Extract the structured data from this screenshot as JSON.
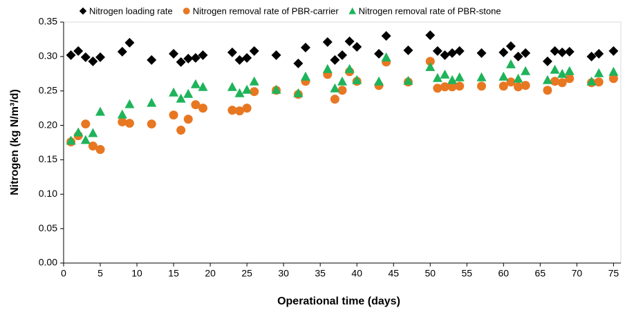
{
  "chart_data": {
    "type": "scatter",
    "x_label": "Operational time (days)",
    "y_label": "Nitrogen (kg N/m³/d)",
    "xlim": [
      0,
      76
    ],
    "ylim": [
      0,
      0.35
    ],
    "xticks": [
      0,
      5,
      10,
      15,
      20,
      25,
      30,
      35,
      40,
      45,
      50,
      55,
      60,
      65,
      70,
      75
    ],
    "yticks": [
      {
        "value": 0,
        "label": "0.00"
      },
      0.05,
      {
        "value": 0.1,
        "label": "0.10"
      },
      0.15,
      {
        "value": 0.2,
        "label": "0.20"
      },
      0.25,
      {
        "value": 0.3,
        "label": "0.30"
      },
      0.35
    ],
    "legend_position": "top",
    "series": [
      {
        "name": "Nitrogen loading rate",
        "color": "#000000",
        "marker": "diamond",
        "x": [
          1,
          2,
          3,
          4,
          5,
          8,
          9,
          12,
          15,
          16,
          17,
          18,
          19,
          23,
          24,
          25,
          26,
          29,
          32,
          33,
          36,
          37,
          38,
          39,
          40,
          43,
          44,
          47,
          50,
          51,
          52,
          53,
          54,
          57,
          60,
          61,
          62,
          63,
          66,
          67,
          68,
          69,
          72,
          73,
          75
        ],
        "values": [
          0.302,
          0.308,
          0.299,
          0.293,
          0.299,
          0.307,
          0.32,
          0.295,
          0.304,
          0.292,
          0.297,
          0.298,
          0.302,
          0.306,
          0.295,
          0.298,
          0.308,
          0.302,
          0.29,
          0.313,
          0.321,
          0.295,
          0.302,
          0.322,
          0.314,
          0.304,
          0.33,
          0.309,
          0.331,
          0.308,
          0.302,
          0.305,
          0.308,
          0.305,
          0.306,
          0.315,
          0.3,
          0.305,
          0.293,
          0.308,
          0.306,
          0.307,
          0.3,
          0.304,
          0.308
        ]
      },
      {
        "name": "Nitrogen removal rate of PBR-carrier",
        "color": "#e87722",
        "marker": "circle",
        "x": [
          1,
          2,
          3,
          4,
          5,
          8,
          9,
          12,
          15,
          16,
          17,
          18,
          19,
          23,
          24,
          25,
          26,
          29,
          32,
          33,
          36,
          37,
          38,
          39,
          40,
          43,
          44,
          47,
          50,
          51,
          52,
          53,
          54,
          57,
          60,
          61,
          62,
          63,
          66,
          67,
          68,
          69,
          72,
          73,
          75
        ],
        "values": [
          0.176,
          0.185,
          0.202,
          0.17,
          0.165,
          0.205,
          0.203,
          0.202,
          0.215,
          0.193,
          0.209,
          0.23,
          0.225,
          0.222,
          0.221,
          0.225,
          0.249,
          0.251,
          0.245,
          0.264,
          0.274,
          0.238,
          0.251,
          0.278,
          0.264,
          0.258,
          0.292,
          0.263,
          0.293,
          0.254,
          0.256,
          0.256,
          0.257,
          0.257,
          0.257,
          0.263,
          0.256,
          0.258,
          0.251,
          0.264,
          0.262,
          0.268,
          0.262,
          0.263,
          0.268
        ]
      },
      {
        "name": "Nitrogen removal rate of PBR-stone",
        "color": "#1fb35a",
        "marker": "triangle",
        "x": [
          1,
          2,
          3,
          4,
          5,
          8,
          9,
          12,
          15,
          16,
          17,
          18,
          19,
          23,
          24,
          25,
          26,
          29,
          32,
          33,
          36,
          37,
          38,
          39,
          40,
          43,
          44,
          47,
          50,
          51,
          52,
          53,
          54,
          57,
          60,
          61,
          62,
          63,
          66,
          67,
          68,
          69,
          72,
          73,
          75
        ],
        "values": [
          0.178,
          0.19,
          0.179,
          0.189,
          0.22,
          0.216,
          0.231,
          0.233,
          0.248,
          0.239,
          0.246,
          0.26,
          0.256,
          0.256,
          0.247,
          0.252,
          0.264,
          0.252,
          0.247,
          0.271,
          0.282,
          0.254,
          0.264,
          0.282,
          0.266,
          0.264,
          0.299,
          0.265,
          0.285,
          0.269,
          0.274,
          0.266,
          0.27,
          0.27,
          0.271,
          0.289,
          0.268,
          0.279,
          0.266,
          0.281,
          0.275,
          0.279,
          0.264,
          0.276,
          0.278
        ]
      }
    ]
  }
}
